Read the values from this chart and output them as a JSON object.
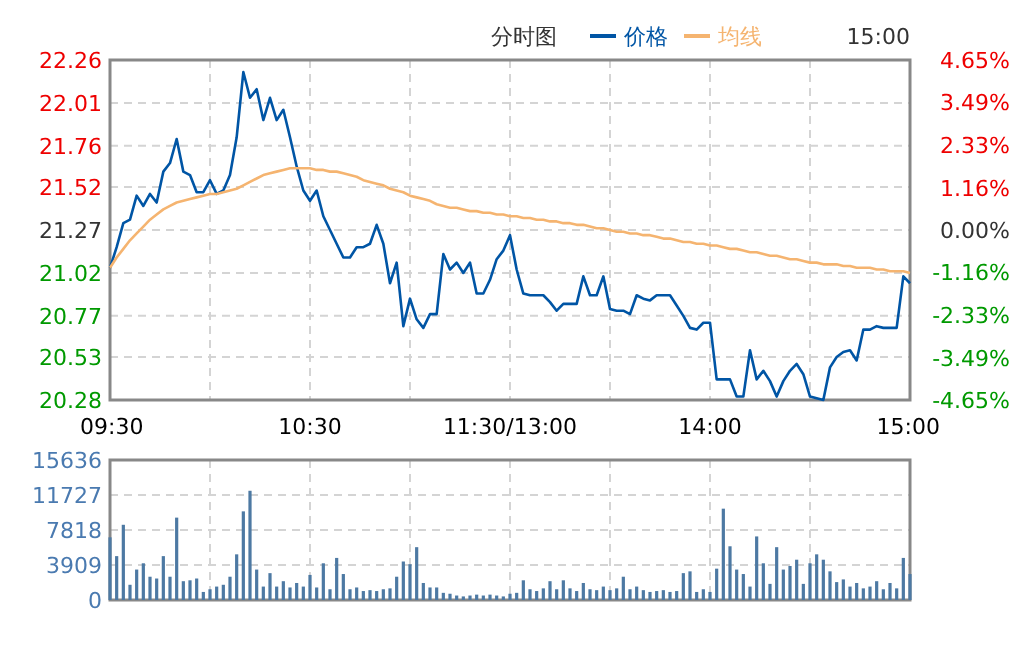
{
  "chart_data": [
    {
      "type": "line",
      "title": "分时图",
      "annotations": [
        "15:00"
      ],
      "legend": "top",
      "grid": true,
      "line_style": "solid",
      "marker": "none",
      "categories": [
        "09:30",
        null,
        null,
        null,
        null,
        null,
        null,
        null,
        null,
        null,
        null,
        null,
        null,
        null,
        null,
        null,
        null,
        null,
        null,
        null,
        null,
        null,
        null,
        null,
        null,
        null,
        null,
        null,
        null,
        null,
        "10:30",
        null,
        null,
        null,
        null,
        null,
        null,
        null,
        null,
        null,
        null,
        null,
        null,
        null,
        null,
        null,
        null,
        null,
        null,
        null,
        null,
        null,
        null,
        null,
        null,
        null,
        null,
        null,
        null,
        null,
        "11:30/13:00",
        null,
        null,
        null,
        null,
        null,
        null,
        null,
        null,
        null,
        null,
        null,
        null,
        null,
        null,
        null,
        null,
        null,
        null,
        null,
        null,
        null,
        null,
        null,
        null,
        null,
        null,
        null,
        null,
        null,
        "14:00",
        null,
        null,
        null,
        null,
        null,
        null,
        null,
        null,
        null,
        null,
        null,
        null,
        null,
        null,
        null,
        null,
        null,
        null,
        null,
        null,
        null,
        null,
        null,
        null,
        null,
        null,
        null,
        null,
        null,
        "15:00"
      ],
      "ylim": [
        20.28,
        22.26
      ],
      "yticks": [
        20.28,
        20.53,
        20.77,
        21.02,
        21.27,
        21.52,
        21.76,
        22.01,
        22.26
      ],
      "y2lim": [
        -4.65,
        4.65
      ],
      "y2ticks": [
        {
          "value": -4.65,
          "label": "-4.65%"
        },
        {
          "value": -3.49,
          "label": "-3.49%"
        },
        {
          "value": -2.33,
          "label": "-2.33%"
        },
        {
          "value": -1.16,
          "label": "-1.16%"
        },
        {
          "value": 0,
          "label": "0.00%"
        },
        {
          "value": 1.16,
          "label": "1.16%"
        },
        {
          "value": 2.33,
          "label": "2.33%"
        },
        {
          "value": 3.49,
          "label": "3.49%"
        },
        {
          "value": 4.65,
          "label": "4.65%"
        }
      ],
      "series": [
        {
          "name": "价格",
          "color": "#0055a5",
          "values": [
            21.05,
            21.17,
            21.31,
            21.33,
            21.47,
            21.41,
            21.48,
            21.43,
            21.61,
            21.66,
            21.8,
            21.61,
            21.59,
            21.49,
            21.49,
            21.56,
            21.48,
            21.5,
            21.59,
            21.81,
            22.19,
            22.04,
            22.09,
            21.91,
            22.04,
            21.91,
            21.97,
            21.81,
            21.64,
            21.5,
            21.44,
            21.5,
            21.35,
            21.27,
            21.19,
            21.11,
            21.11,
            21.17,
            21.17,
            21.19,
            21.3,
            21.19,
            20.96,
            21.08,
            20.71,
            20.87,
            20.75,
            20.7,
            20.78,
            20.78,
            21.13,
            21.04,
            21.08,
            21.02,
            21.08,
            20.9,
            20.9,
            20.98,
            21.1,
            21.15,
            21.24,
            21.04,
            20.9,
            20.89,
            20.89,
            20.89,
            20.85,
            20.8,
            20.84,
            20.84,
            20.84,
            21.0,
            20.89,
            20.89,
            21.0,
            20.81,
            20.8,
            20.8,
            20.78,
            20.89,
            20.87,
            20.86,
            20.89,
            20.89,
            20.89,
            20.83,
            20.77,
            20.7,
            20.69,
            20.73,
            20.73,
            20.4,
            20.4,
            20.4,
            20.3,
            20.3,
            20.57,
            20.4,
            20.45,
            20.39,
            20.3,
            20.39,
            20.45,
            20.49,
            20.43,
            20.3,
            20.29,
            20.28,
            20.47,
            20.53,
            20.56,
            20.57,
            20.51,
            20.69,
            20.69,
            20.71,
            20.7,
            20.7,
            20.7,
            21.0,
            20.96
          ]
        },
        {
          "name": "均线",
          "color": "#f5b470",
          "values": [
            21.05,
            21.11,
            21.16,
            21.21,
            21.25,
            21.29,
            21.33,
            21.36,
            21.39,
            21.41,
            21.43,
            21.44,
            21.45,
            21.46,
            21.47,
            21.48,
            21.48,
            21.49,
            21.5,
            21.51,
            21.53,
            21.55,
            21.57,
            21.59,
            21.6,
            21.61,
            21.62,
            21.63,
            21.63,
            21.63,
            21.63,
            21.62,
            21.62,
            21.61,
            21.61,
            21.6,
            21.59,
            21.58,
            21.56,
            21.55,
            21.54,
            21.53,
            21.51,
            21.5,
            21.49,
            21.47,
            21.46,
            21.45,
            21.44,
            21.42,
            21.41,
            21.4,
            21.4,
            21.39,
            21.38,
            21.38,
            21.37,
            21.37,
            21.36,
            21.36,
            21.35,
            21.35,
            21.34,
            21.34,
            21.33,
            21.33,
            21.32,
            21.32,
            21.31,
            21.31,
            21.3,
            21.3,
            21.29,
            21.28,
            21.28,
            21.27,
            21.26,
            21.26,
            21.25,
            21.25,
            21.24,
            21.24,
            21.23,
            21.22,
            21.22,
            21.21,
            21.2,
            21.2,
            21.19,
            21.19,
            21.18,
            21.18,
            21.17,
            21.16,
            21.16,
            21.15,
            21.14,
            21.14,
            21.13,
            21.12,
            21.12,
            21.11,
            21.1,
            21.1,
            21.09,
            21.08,
            21.08,
            21.07,
            21.07,
            21.07,
            21.06,
            21.06,
            21.05,
            21.05,
            21.05,
            21.04,
            21.04,
            21.03,
            21.03,
            21.03,
            21.02
          ]
        }
      ]
    },
    {
      "type": "bar",
      "color": "#4d79a3",
      "grid": true,
      "tick_labels": "y",
      "categories": [
        null,
        null,
        null,
        null,
        null,
        null,
        null,
        null,
        null,
        null,
        null,
        null,
        null,
        null,
        null,
        null,
        null,
        null,
        null,
        null,
        null,
        null,
        null,
        null,
        null,
        null,
        null,
        null,
        null,
        null,
        null,
        null,
        null,
        null,
        null,
        null,
        null,
        null,
        null,
        null,
        null,
        null,
        null,
        null,
        null,
        null,
        null,
        null,
        null,
        null,
        null,
        null,
        null,
        null,
        null,
        null,
        null,
        null,
        null,
        null,
        null,
        null,
        null,
        null,
        null,
        null,
        null,
        null,
        null,
        null,
        null,
        null,
        null,
        null,
        null,
        null,
        null,
        null,
        null,
        null,
        null,
        null,
        null,
        null,
        null,
        null,
        null,
        null,
        null,
        null,
        null,
        null,
        null,
        null,
        null,
        null,
        null,
        null,
        null,
        null,
        null,
        null,
        null,
        null,
        null,
        null,
        null,
        null,
        null,
        null,
        null,
        null,
        null,
        null,
        null,
        null,
        null,
        null,
        null,
        null,
        null
      ],
      "ylim": [
        0,
        15636
      ],
      "yticks": [
        0,
        3909,
        7818,
        11727,
        15636
      ],
      "values": [
        7000,
        4900,
        8400,
        1700,
        3400,
        4100,
        2600,
        2400,
        4900,
        2600,
        9200,
        2100,
        2200,
        2400,
        900,
        1200,
        1500,
        1700,
        2600,
        5100,
        9900,
        12200,
        3400,
        1500,
        3000,
        1500,
        2100,
        1400,
        1900,
        1500,
        2800,
        1400,
        4100,
        1200,
        4700,
        2900,
        1200,
        1400,
        1000,
        1100,
        1000,
        1200,
        1300,
        2600,
        4300,
        4000,
        5900,
        1900,
        1400,
        1400,
        800,
        700,
        500,
        400,
        500,
        600,
        500,
        600,
        500,
        400,
        700,
        800,
        2200,
        1200,
        1000,
        1300,
        2100,
        1200,
        2200,
        1300,
        1000,
        1900,
        1200,
        1100,
        1500,
        1100,
        1300,
        2600,
        1200,
        1500,
        1100,
        900,
        1000,
        1100,
        900,
        1000,
        3000,
        3200,
        900,
        1200,
        900,
        3500,
        10200,
        6000,
        3400,
        2900,
        1500,
        7100,
        4100,
        1800,
        5900,
        3400,
        3800,
        4500,
        1800,
        4100,
        5100,
        4500,
        3200,
        2000,
        2300,
        1500,
        1900,
        1300,
        1500,
        2100,
        1200,
        1900,
        1300,
        4700,
        2900
      ]
    }
  ]
}
